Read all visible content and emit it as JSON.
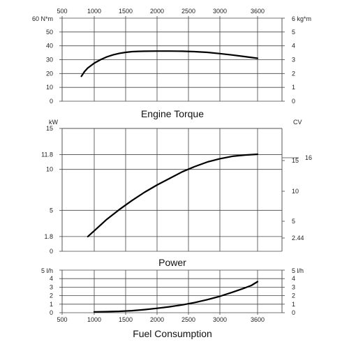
{
  "chart_data": [
    {
      "type": "line",
      "title": "Engine Torque",
      "x_ticks_top": [
        "500",
        "1000",
        "1500",
        "2000",
        "2500",
        "3000",
        "3600"
      ],
      "xlim": [
        500,
        3900
      ],
      "left_axis": {
        "unit": "60 N*m",
        "ticks": [
          "50",
          "40",
          "30",
          "20",
          "10",
          "0"
        ]
      },
      "right_axis": {
        "unit": "6 kg*m",
        "ticks": [
          "5",
          "4",
          "3",
          "2",
          "1",
          "0"
        ]
      },
      "ylim": [
        0,
        60
      ],
      "grid": true,
      "series": [
        {
          "x": [
            800,
            850,
            900,
            1000,
            1100,
            1200,
            1300,
            1400,
            1500,
            1600,
            1700,
            1800,
            2000,
            2200,
            2400,
            2600,
            2800,
            3000,
            3200,
            3400,
            3600
          ],
          "y": [
            18,
            21.5,
            24,
            27.5,
            30,
            32,
            33.5,
            34.6,
            35.3,
            35.8,
            36,
            36.1,
            36.2,
            36.2,
            36.1,
            35.8,
            35.3,
            34.4,
            33.4,
            32.2,
            31
          ]
        }
      ]
    },
    {
      "type": "line",
      "title": "Power",
      "left_axis": {
        "unit": "kW",
        "ticks": [
          "15",
          "11.8",
          "10",
          "5",
          "1.8",
          "0"
        ],
        "values": [
          15,
          11.8,
          10,
          5,
          1.8,
          0
        ]
      },
      "right_axis": {
        "unit": "CV",
        "ticks": [
          "16",
          "15",
          "10",
          "5",
          "2.44"
        ],
        "values": [
          16,
          15,
          10,
          5,
          2.44
        ]
      },
      "xlim": [
        500,
        3900
      ],
      "ylim": [
        0,
        15
      ],
      "grid": true,
      "series": [
        {
          "x": [
            900,
            1000,
            1200,
            1400,
            1600,
            1800,
            2000,
            2200,
            2400,
            2600,
            2800,
            3000,
            3200,
            3400,
            3600
          ],
          "y": [
            1.8,
            2.5,
            3.9,
            5.1,
            6.2,
            7.2,
            8.1,
            8.9,
            9.7,
            10.35,
            10.9,
            11.3,
            11.6,
            11.75,
            11.85
          ]
        }
      ]
    },
    {
      "type": "line",
      "title": "Fuel Consumption",
      "x_ticks_bottom": [
        "500",
        "1000",
        "1500",
        "2000",
        "2500",
        "3000",
        "3600"
      ],
      "xlim": [
        500,
        3900
      ],
      "left_axis": {
        "unit": "5 l/h",
        "ticks": [
          "4",
          "3",
          "2",
          "1",
          "0"
        ]
      },
      "right_axis": {
        "unit": "5 l/h",
        "ticks": [
          "4",
          "3",
          "2",
          "1",
          "0"
        ]
      },
      "ylim": [
        0,
        5
      ],
      "grid": true,
      "series": [
        {
          "x": [
            1000,
            1200,
            1400,
            1600,
            1800,
            2000,
            2200,
            2400,
            2600,
            2800,
            3000,
            3200,
            3400,
            3500,
            3600
          ],
          "y": [
            0.1,
            0.12,
            0.16,
            0.24,
            0.36,
            0.52,
            0.7,
            0.92,
            1.2,
            1.53,
            1.93,
            2.4,
            2.92,
            3.2,
            3.65
          ]
        }
      ]
    }
  ]
}
